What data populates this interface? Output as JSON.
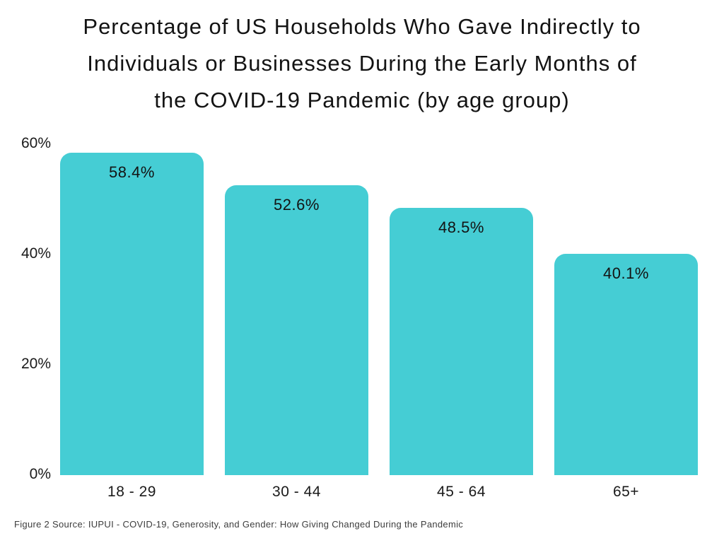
{
  "title_lines": [
    "Percentage of US Households Who Gave Indirectly to",
    "Individuals or Businesses During the Early Months of",
    "the COVID-19 Pandemic (by age group)"
  ],
  "caption": "Figure 2 Source: IUPUI - COVID-19, Generosity, and Gender: How Giving Changed During the Pandemic",
  "colors": {
    "bar": "#45cdd4",
    "background": "#ffffff",
    "title_text": "#131313",
    "axis_text": "#1a1a1a",
    "caption_text": "#3d3d3d"
  },
  "chart_data": {
    "type": "bar",
    "title": "Percentage of US Households Who Gave Indirectly to Individuals or Businesses During the Early Months of the COVID-19 Pandemic (by age group)",
    "categories": [
      "18 - 29",
      "30 - 44",
      "45 - 64",
      "65+"
    ],
    "values": [
      58.4,
      52.6,
      48.5,
      40.1
    ],
    "data_labels": [
      "58.4%",
      "52.6%",
      "48.5%",
      "40.1%"
    ],
    "xlabel": "",
    "ylabel": "",
    "ylim": [
      0,
      60
    ],
    "yticks": [
      {
        "value": 60,
        "label": "60%"
      },
      {
        "value": 40,
        "label": "40%"
      },
      {
        "value": 20,
        "label": "20%"
      },
      {
        "value": 0,
        "label": "0%"
      }
    ],
    "grid": false,
    "legend": false,
    "bar_color": "#45cdd4",
    "data_label_position": "inside-top",
    "bar_corner_radius": "rounded-top"
  }
}
